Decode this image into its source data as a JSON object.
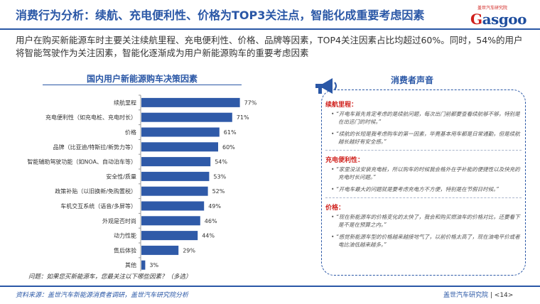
{
  "page": {
    "title": "消费行为分析：续航、充电便利性、价格为TOP3关注点，智能化成重要考虑因素",
    "logo_sub": "盖世汽车研究院",
    "logo_brand_g": "G",
    "logo_brand_rest": "asgoo",
    "summary": "用户在购买新能源车时主要关注续航里程、充电便利性、价格、品牌等因素，TOP4关注因素占比均超过60%。同时，54%的用户将智能驾驶作为关注因素，智能化逐渐成为用户新能源购车的重要考虑因素",
    "question": "问题：如果您买新能源车，您最关注以下哪些因素？（多选）",
    "source": "资料来源：盖世汽车新能源消费者调研，盖世汽车研究院分析",
    "footer_org": "盖世汽车研究院",
    "footer_page": "<14>"
  },
  "chart_data": {
    "type": "bar",
    "orientation": "horizontal",
    "title": "国内用户新能源购车决策因素",
    "unit": "%",
    "categories": [
      "续航里程",
      "充电便利性（如充电桩、充电时长）",
      "价格",
      "品牌（比亚迪/特斯拉/新势力等）",
      "智能辅助驾驶功能（如NOA、自动泊车等）",
      "安全性/质量",
      "政策补贴（以旧换新/免购置税）",
      "车机交互系统（语音/多屏等）",
      "外观是否时尚",
      "动力性能",
      "售后体验",
      "其他"
    ],
    "values": [
      77,
      71,
      61,
      60,
      54,
      53,
      52,
      49,
      46,
      44,
      29,
      3
    ],
    "value_labels": [
      "77%",
      "71%",
      "61%",
      "60%",
      "54%",
      "53%",
      "52%",
      "49%",
      "46%",
      "44%",
      "29%",
      "3%"
    ],
    "xlim": [
      0,
      100
    ],
    "colors": {
      "bar": "#2f5aa8",
      "label": "#333333"
    }
  },
  "voices": {
    "title": "消费者声音",
    "groups": [
      {
        "heading": "续航里程：",
        "quotes": [
          "“开电车首先肯定考虑的是续航问题，每次出门前都要查看续航够不够，特别是在出远门的时候。”",
          "“续航的长短是我考虑购车的第一因素，毕竟基本用车都是日常通勤，但是续航越长越好有安全感。”"
        ]
      },
      {
        "heading": "充电便利性：",
        "quotes": [
          "“家里没法安装充电桩，所以购车的时候我会格外在乎补能的便捷性以及快充的充电时长问题。”",
          "“开电车最大的问题就是要考虑充电方不方便，特别是在节假日时候。”"
        ]
      },
      {
        "heading": "价格：",
        "quotes": [
          "“现在新能源车的价格变化的太快了，我会和购买燃油车的价格对比，还要看下是不是在预算之内。”",
          "“感觉新能源车型的价格越来越接地气了，以前价格太高了，现在油电平价或者电比油低越来越多。”"
        ]
      }
    ]
  }
}
